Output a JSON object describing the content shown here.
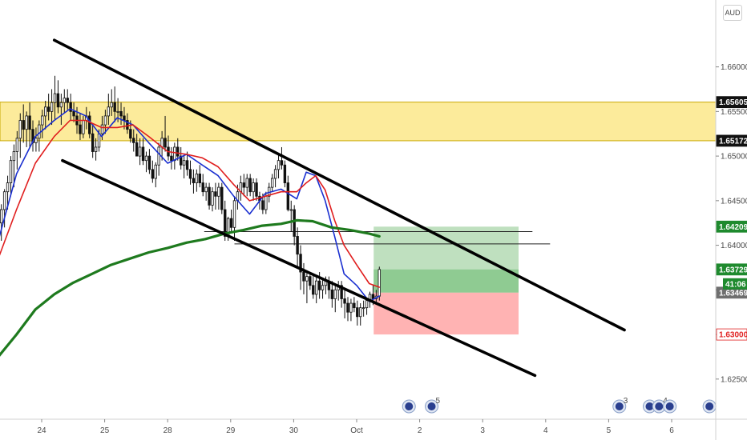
{
  "chart_data": {
    "type": "candlestick",
    "currency": "AUD",
    "ylim": [
      1.6205,
      1.6675
    ],
    "y_ticks": [
      1.625,
      1.63,
      1.635,
      1.64,
      1.645,
      1.65,
      1.655,
      1.66
    ],
    "y_tick_labels": [
      "1.62500",
      "1.63000",
      "1.63500",
      "1.64000",
      "1.64500",
      "1.65000",
      "1.65500",
      "1.66000"
    ],
    "x_ticks": [
      {
        "label": "24",
        "day": 0
      },
      {
        "label": "25",
        "day": 1
      },
      {
        "label": "28",
        "day": 2
      },
      {
        "label": "29",
        "day": 3
      },
      {
        "label": "30",
        "day": 4
      },
      {
        "label": "Oct",
        "day": 5
      },
      {
        "label": "2",
        "day": 6
      },
      {
        "label": "3",
        "day": 7
      },
      {
        "label": "4",
        "day": 8
      },
      {
        "label": "5",
        "day": 9
      },
      {
        "label": "6",
        "day": 10
      }
    ],
    "resistance_zone": {
      "low": 1.65172,
      "high": 1.65605,
      "color": "#fbe889"
    },
    "price_tags": [
      {
        "value": 1.65605,
        "label": "1.65605",
        "bg": "#111111",
        "fg": "#ffffff"
      },
      {
        "value": 1.65172,
        "label": "1.65172",
        "bg": "#111111",
        "fg": "#ffffff"
      },
      {
        "value": 1.64209,
        "label": "1.64209",
        "bg": "#1f8a2e",
        "fg": "#ffffff"
      },
      {
        "value": 1.63729,
        "label": "1.63729",
        "bg": "#1f8a2e",
        "fg": "#ffffff"
      },
      {
        "value": 1.63469,
        "label": "1.63469",
        "bg": "#6f6f6f",
        "fg": "#ffffff"
      },
      {
        "value": 1.63,
        "label": "1.63000",
        "bg": "#ffffff",
        "fg": "#e02020"
      }
    ],
    "countdown_label": "41:06",
    "position": {
      "entry": 1.63469,
      "target": 1.64209,
      "stop": 1.63,
      "start_day": 5.27,
      "end_day": 7.57,
      "current": 1.63729
    },
    "channel": {
      "upper": [
        [
          0.2,
          1.663
        ],
        [
          9.25,
          1.6305
        ]
      ],
      "lower": [
        [
          0.33,
          1.6495
        ],
        [
          7.83,
          1.6254
        ]
      ]
    },
    "horizontal_lines": [
      {
        "value": 1.64015,
        "from_day": 3.06,
        "to_day": 8.07
      },
      {
        "value": 1.64153,
        "from_day": 2.58,
        "to_day": 7.79
      }
    ],
    "series": [
      {
        "name": "",
        "kind": "ohlc",
        "x": [
          -0.69,
          -0.64,
          -0.59,
          -0.54,
          -0.49,
          -0.44,
          -0.39,
          -0.34,
          -0.29,
          -0.24,
          -0.19,
          -0.14,
          -0.09,
          -0.04,
          0.01,
          0.06,
          0.11,
          0.16,
          0.21,
          0.26,
          0.31,
          0.36,
          0.41,
          0.46,
          0.51,
          0.56,
          0.61,
          0.66,
          0.71,
          0.76,
          0.81,
          0.86,
          0.91,
          0.96,
          1.01,
          1.06,
          1.11,
          1.16,
          1.21,
          1.26,
          1.31,
          1.36,
          1.41,
          1.46,
          1.51,
          1.56,
          1.61,
          1.66,
          1.71,
          1.76,
          1.81,
          1.86,
          1.91,
          1.96,
          2.01,
          2.06,
          2.11,
          2.16,
          2.21,
          2.26,
          2.31,
          2.36,
          2.41,
          2.46,
          2.51,
          2.56,
          2.61,
          2.66,
          2.71,
          2.76,
          2.81,
          2.86,
          2.91,
          2.96,
          3.01,
          3.06,
          3.11,
          3.16,
          3.21,
          3.26,
          3.31,
          3.36,
          3.41,
          3.46,
          3.51,
          3.56,
          3.61,
          3.66,
          3.71,
          3.76,
          3.81,
          3.86,
          3.91,
          3.96,
          4.01,
          4.06,
          4.11,
          4.16,
          4.21,
          4.26,
          4.31,
          4.36,
          4.41,
          4.46,
          4.51,
          4.56,
          4.61,
          4.66,
          4.71,
          4.76,
          4.81,
          4.86,
          4.91,
          4.96,
          5.01,
          5.06,
          5.11,
          5.16,
          5.21,
          5.26,
          5.31,
          5.36
        ],
        "open": [
          1.641,
          1.6425,
          1.644,
          1.646,
          1.647,
          1.6495,
          1.6505,
          1.652,
          1.654,
          1.653,
          1.6545,
          1.653,
          1.6515,
          1.652,
          1.6535,
          1.6545,
          1.6555,
          1.655,
          1.656,
          1.657,
          1.6555,
          1.656,
          1.6565,
          1.656,
          1.655,
          1.6545,
          1.6535,
          1.6525,
          1.654,
          1.6545,
          1.6525,
          1.6505,
          1.651,
          1.6525,
          1.6535,
          1.6545,
          1.6555,
          1.656,
          1.655,
          1.655,
          1.6545,
          1.654,
          1.653,
          1.652,
          1.6515,
          1.65,
          1.651,
          1.6495,
          1.65,
          1.6485,
          1.6475,
          1.649,
          1.651,
          1.652,
          1.651,
          1.65,
          1.6495,
          1.651,
          1.65,
          1.649,
          1.6495,
          1.6485,
          1.6475,
          1.647,
          1.648,
          1.647,
          1.646,
          1.6465,
          1.6445,
          1.646,
          1.6455,
          1.6465,
          1.644,
          1.641,
          1.643,
          1.642,
          1.645,
          1.646,
          1.647,
          1.6465,
          1.6475,
          1.646,
          1.647,
          1.6455,
          1.645,
          1.644,
          1.6455,
          1.6465,
          1.6475,
          1.6485,
          1.6495,
          1.649,
          1.647,
          1.644,
          1.644,
          1.641,
          1.639,
          1.637,
          1.636,
          1.6365,
          1.6355,
          1.6345,
          1.636,
          1.635,
          1.6355,
          1.636,
          1.635,
          1.634,
          1.635,
          1.6355,
          1.634,
          1.6335,
          1.6325,
          1.6335,
          1.633,
          1.632,
          1.633,
          1.633,
          1.6338,
          1.6345,
          1.634,
          1.6343
        ],
        "high": [
          1.6432,
          1.6446,
          1.6463,
          1.6478,
          1.65,
          1.6513,
          1.6528,
          1.6548,
          1.6558,
          1.655,
          1.656,
          1.654,
          1.6532,
          1.654,
          1.6552,
          1.6562,
          1.657,
          1.6575,
          1.659,
          1.6585,
          1.657,
          1.6575,
          1.6575,
          1.657,
          1.656,
          1.6555,
          1.6548,
          1.6545,
          1.6555,
          1.655,
          1.6535,
          1.652,
          1.653,
          1.6545,
          1.6552,
          1.657,
          1.6575,
          1.6578,
          1.6565,
          1.656,
          1.6555,
          1.6548,
          1.654,
          1.653,
          1.6525,
          1.652,
          1.652,
          1.6505,
          1.6508,
          1.6495,
          1.6493,
          1.6515,
          1.6528,
          1.6545,
          1.6523,
          1.651,
          1.6515,
          1.652,
          1.651,
          1.65,
          1.6505,
          1.6495,
          1.6485,
          1.6485,
          1.649,
          1.648,
          1.647,
          1.647,
          1.6465,
          1.647,
          1.647,
          1.647,
          1.645,
          1.6432,
          1.644,
          1.6455,
          1.6468,
          1.6478,
          1.648,
          1.648,
          1.648,
          1.6475,
          1.6475,
          1.646,
          1.6458,
          1.646,
          1.647,
          1.648,
          1.649,
          1.6503,
          1.651,
          1.6495,
          1.6478,
          1.645,
          1.6445,
          1.642,
          1.64,
          1.638,
          1.6372,
          1.637,
          1.6368,
          1.6365,
          1.637,
          1.6362,
          1.6365,
          1.6365,
          1.636,
          1.6355,
          1.636,
          1.636,
          1.635,
          1.6342,
          1.634,
          1.6342,
          1.6338,
          1.6335,
          1.6338,
          1.634,
          1.6348,
          1.6355,
          1.635,
          1.6376
        ],
        "low": [
          1.6398,
          1.6405,
          1.642,
          1.644,
          1.6455,
          1.6465,
          1.6485,
          1.6498,
          1.6515,
          1.651,
          1.651,
          1.6505,
          1.6505,
          1.6505,
          1.652,
          1.653,
          1.654,
          1.6535,
          1.654,
          1.6548,
          1.6535,
          1.6548,
          1.6552,
          1.654,
          1.6538,
          1.6525,
          1.6518,
          1.652,
          1.653,
          1.652,
          1.6498,
          1.6495,
          1.6505,
          1.6518,
          1.6525,
          1.6535,
          1.6545,
          1.6538,
          1.6538,
          1.6535,
          1.653,
          1.6525,
          1.6515,
          1.6505,
          1.65,
          1.649,
          1.649,
          1.6482,
          1.648,
          1.647,
          1.6465,
          1.6478,
          1.6495,
          1.6505,
          1.6495,
          1.6485,
          1.6485,
          1.6495,
          1.6485,
          1.6475,
          1.6478,
          1.6468,
          1.6458,
          1.646,
          1.6465,
          1.6455,
          1.645,
          1.644,
          1.6438,
          1.644,
          1.644,
          1.6435,
          1.6405,
          1.6405,
          1.6415,
          1.6405,
          1.644,
          1.645,
          1.6455,
          1.6455,
          1.6455,
          1.645,
          1.645,
          1.644,
          1.6435,
          1.6435,
          1.6448,
          1.646,
          1.6465,
          1.6475,
          1.6485,
          1.6465,
          1.6438,
          1.6415,
          1.64,
          1.6375,
          1.635,
          1.6345,
          1.6335,
          1.635,
          1.634,
          1.6335,
          1.634,
          1.634,
          1.6345,
          1.634,
          1.633,
          1.6325,
          1.6338,
          1.633,
          1.6318,
          1.6315,
          1.6315,
          1.6325,
          1.631,
          1.631,
          1.632,
          1.6322,
          1.633,
          1.6333,
          1.6335,
          1.6338
        ],
        "close": [
          1.6425,
          1.644,
          1.646,
          1.647,
          1.6495,
          1.6505,
          1.652,
          1.654,
          1.653,
          1.6545,
          1.653,
          1.6515,
          1.652,
          1.6535,
          1.6545,
          1.6555,
          1.655,
          1.656,
          1.657,
          1.6555,
          1.656,
          1.6565,
          1.656,
          1.655,
          1.6545,
          1.6535,
          1.6525,
          1.654,
          1.6545,
          1.6525,
          1.6505,
          1.651,
          1.6525,
          1.6535,
          1.6545,
          1.6555,
          1.656,
          1.655,
          1.655,
          1.6545,
          1.654,
          1.653,
          1.652,
          1.6515,
          1.65,
          1.651,
          1.6495,
          1.65,
          1.6485,
          1.6475,
          1.649,
          1.651,
          1.652,
          1.651,
          1.65,
          1.6495,
          1.651,
          1.65,
          1.649,
          1.6495,
          1.6485,
          1.6475,
          1.647,
          1.648,
          1.647,
          1.646,
          1.6465,
          1.6445,
          1.646,
          1.6455,
          1.6465,
          1.644,
          1.641,
          1.643,
          1.642,
          1.645,
          1.646,
          1.647,
          1.6465,
          1.6475,
          1.646,
          1.647,
          1.6455,
          1.645,
          1.644,
          1.6455,
          1.6465,
          1.6475,
          1.6485,
          1.6495,
          1.649,
          1.647,
          1.644,
          1.644,
          1.641,
          1.639,
          1.637,
          1.636,
          1.6365,
          1.6355,
          1.6345,
          1.636,
          1.635,
          1.6355,
          1.636,
          1.635,
          1.634,
          1.635,
          1.6355,
          1.634,
          1.6335,
          1.6325,
          1.6335,
          1.633,
          1.632,
          1.633,
          1.633,
          1.6338,
          1.6345,
          1.634,
          1.6343,
          1.63729
        ]
      },
      {
        "name": "",
        "kind": "line",
        "color": "#1a2fd0",
        "width": 1.6,
        "points": [
          [
            -0.69,
            1.6405
          ],
          [
            -0.4,
            1.648
          ],
          [
            -0.1,
            1.6522
          ],
          [
            0.2,
            1.654
          ],
          [
            0.45,
            1.6553
          ],
          [
            0.7,
            1.6545
          ],
          [
            0.95,
            1.6522
          ],
          [
            1.2,
            1.6543
          ],
          [
            1.45,
            1.6535
          ],
          [
            1.7,
            1.6515
          ],
          [
            2.0,
            1.6492
          ],
          [
            2.3,
            1.6502
          ],
          [
            2.55,
            1.649
          ],
          [
            2.8,
            1.6478
          ],
          [
            3.05,
            1.6455
          ],
          [
            3.3,
            1.6435
          ],
          [
            3.55,
            1.6458
          ],
          [
            3.8,
            1.6463
          ],
          [
            4.05,
            1.6452
          ],
          [
            4.2,
            1.6482
          ],
          [
            4.35,
            1.6478
          ],
          [
            4.5,
            1.645
          ],
          [
            4.65,
            1.641
          ],
          [
            4.8,
            1.6368
          ],
          [
            5.0,
            1.6355
          ],
          [
            5.2,
            1.6337
          ],
          [
            5.36,
            1.6343
          ]
        ]
      },
      {
        "name": "",
        "kind": "line",
        "color": "#e01e1e",
        "width": 1.6,
        "points": [
          [
            -0.69,
            1.6385
          ],
          [
            -0.4,
            1.644
          ],
          [
            -0.1,
            1.6492
          ],
          [
            0.2,
            1.6522
          ],
          [
            0.45,
            1.654
          ],
          [
            0.7,
            1.654
          ],
          [
            0.95,
            1.6532
          ],
          [
            1.2,
            1.6532
          ],
          [
            1.45,
            1.6535
          ],
          [
            1.7,
            1.6522
          ],
          [
            2.0,
            1.6505
          ],
          [
            2.3,
            1.6502
          ],
          [
            2.55,
            1.6498
          ],
          [
            2.8,
            1.6488
          ],
          [
            3.05,
            1.6468
          ],
          [
            3.3,
            1.645
          ],
          [
            3.55,
            1.6455
          ],
          [
            3.8,
            1.646
          ],
          [
            4.05,
            1.646
          ],
          [
            4.2,
            1.647
          ],
          [
            4.35,
            1.6478
          ],
          [
            4.5,
            1.6462
          ],
          [
            4.65,
            1.6428
          ],
          [
            4.8,
            1.64
          ],
          [
            5.0,
            1.6378
          ],
          [
            5.2,
            1.6357
          ],
          [
            5.36,
            1.6353
          ]
        ]
      },
      {
        "name": "",
        "kind": "line",
        "color": "#1e7a1e",
        "width": 3.2,
        "points": [
          [
            -0.69,
            1.6275
          ],
          [
            -0.4,
            1.63
          ],
          [
            -0.1,
            1.6328
          ],
          [
            0.2,
            1.6345
          ],
          [
            0.5,
            1.6358
          ],
          [
            0.8,
            1.6368
          ],
          [
            1.1,
            1.6378
          ],
          [
            1.4,
            1.6385
          ],
          [
            1.7,
            1.6392
          ],
          [
            2.0,
            1.6397
          ],
          [
            2.3,
            1.6403
          ],
          [
            2.6,
            1.6407
          ],
          [
            2.9,
            1.6413
          ],
          [
            3.2,
            1.6417
          ],
          [
            3.5,
            1.6422
          ],
          [
            3.8,
            1.6424
          ],
          [
            4.05,
            1.6428
          ],
          [
            4.3,
            1.6427
          ],
          [
            4.6,
            1.642
          ],
          [
            4.9,
            1.6417
          ],
          [
            5.2,
            1.6413
          ],
          [
            5.36,
            1.641
          ]
        ]
      }
    ],
    "event_markers": [
      {
        "day": 5.83,
        "label": ""
      },
      {
        "day": 6.19,
        "label": "5"
      },
      {
        "day": 9.17,
        "label": "3"
      },
      {
        "day": 9.65,
        "label": ""
      },
      {
        "day": 9.8,
        "label": "4"
      },
      {
        "day": 9.97,
        "label": ""
      },
      {
        "day": 10.6,
        "label": ""
      }
    ]
  }
}
